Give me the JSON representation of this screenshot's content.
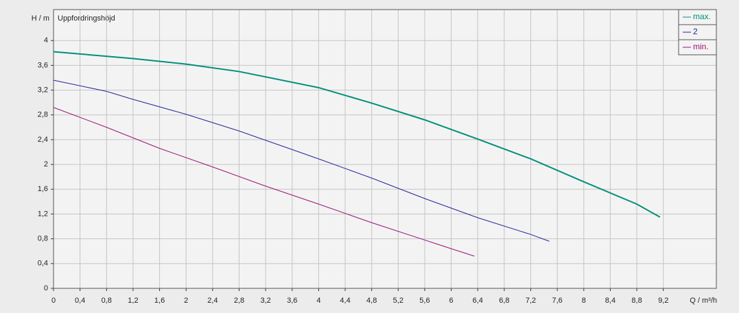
{
  "chart_data": {
    "type": "line",
    "y_label": "H / m",
    "x_label": "Q / m³/h",
    "subtitle": "Uppfordringshöjd",
    "xlim": [
      0,
      10
    ],
    "ylim": [
      0,
      4.5
    ],
    "grid": true,
    "legend": "top-right",
    "xticks": [
      0,
      {
        "value": 0.4,
        "label": "0,4"
      },
      {
        "value": 0.8,
        "label": "0,8"
      },
      {
        "value": 1.2,
        "label": "1,2"
      },
      {
        "value": 1.6,
        "label": "1,6"
      },
      2,
      {
        "value": 2.4,
        "label": "2,4"
      },
      {
        "value": 2.8,
        "label": "2,8"
      },
      {
        "value": 3.2,
        "label": "3,2"
      },
      {
        "value": 3.6,
        "label": "3,6"
      },
      4,
      {
        "value": 4.4,
        "label": "4,4"
      },
      {
        "value": 4.8,
        "label": "4,8"
      },
      {
        "value": 5.2,
        "label": "5,2"
      },
      {
        "value": 5.6,
        "label": "5,6"
      },
      6,
      {
        "value": 6.4,
        "label": "6,4"
      },
      {
        "value": 6.8,
        "label": "6,8"
      },
      {
        "value": 7.2,
        "label": "7,2"
      },
      {
        "value": 7.6,
        "label": "7,6"
      },
      8,
      {
        "value": 8.4,
        "label": "8,4"
      },
      {
        "value": 8.8,
        "label": "8,8"
      },
      {
        "value": 9.2,
        "label": "9,2"
      }
    ],
    "yticks": [
      0,
      {
        "value": 0.4,
        "label": "0,4"
      },
      {
        "value": 0.8,
        "label": "0,8"
      },
      {
        "value": 1.2,
        "label": "1,2"
      },
      {
        "value": 1.6,
        "label": "1,6"
      },
      2,
      {
        "value": 2.4,
        "label": "2,4"
      },
      {
        "value": 2.8,
        "label": "2,8"
      },
      {
        "value": 3.2,
        "label": "3,2"
      },
      {
        "value": 3.6,
        "label": "3,6"
      },
      4
    ],
    "series": [
      {
        "name": "max.",
        "color": "#008f7a",
        "width": 2,
        "x": [
          0,
          1.2,
          2,
          2.8,
          4,
          4.8,
          5.6,
          6.4,
          7.2,
          8,
          8.8,
          9.15
        ],
        "values": [
          3.82,
          3.71,
          3.62,
          3.5,
          3.24,
          2.99,
          2.72,
          2.41,
          2.09,
          1.72,
          1.36,
          1.15
        ]
      },
      {
        "name": "2",
        "color": "#24249a",
        "width": 1,
        "x": [
          0,
          0.8,
          1.2,
          2,
          2.8,
          3.6,
          4,
          4.8,
          5.6,
          6.4,
          7.2,
          7.48
        ],
        "values": [
          3.36,
          3.18,
          3.05,
          2.81,
          2.54,
          2.24,
          2.09,
          1.78,
          1.45,
          1.14,
          0.87,
          0.76
        ]
      },
      {
        "name": "min.",
        "color": "#9c0f74",
        "width": 1,
        "x": [
          0,
          0.8,
          1.6,
          2.4,
          3.2,
          4,
          4.8,
          5.6,
          6,
          6.35
        ],
        "values": [
          2.92,
          2.6,
          2.26,
          1.96,
          1.65,
          1.36,
          1.06,
          0.78,
          0.64,
          0.52
        ]
      }
    ]
  }
}
